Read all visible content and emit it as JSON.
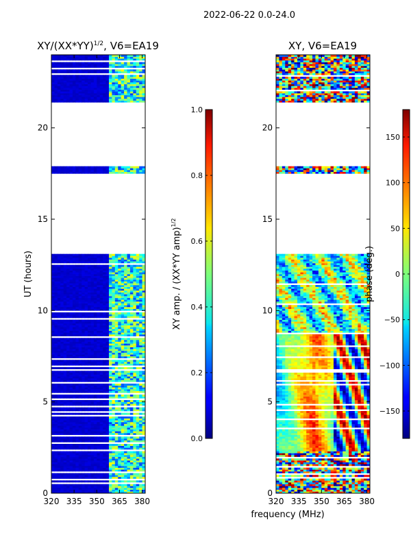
{
  "suptitle": "2022-06-22 0.0-24.0",
  "xlabel_shared": "frequency (MHz)",
  "chart_data": [
    {
      "type": "heatmap",
      "title_main": "XY/(XX*YY)",
      "title_sup": "1/2",
      "title_tail": ", V6=EA19",
      "ylabel": "UT (hours)",
      "xlim": [
        320,
        382
      ],
      "ylim": [
        0,
        24
      ],
      "xticks": [
        320,
        335,
        350,
        365,
        380
      ],
      "yticks": [
        0,
        5,
        10,
        15,
        20
      ],
      "colorbar": {
        "label_main": "XY amp. / (XX*YY amp)",
        "label_sup": "1/2",
        "range": [
          0.0,
          1.0
        ],
        "ticks": [
          "0.0",
          "0.2",
          "0.4",
          "0.6",
          "0.8",
          "1.0"
        ],
        "tick_values": [
          0.0,
          0.2,
          0.4,
          0.6,
          0.8,
          1.0
        ]
      },
      "data_gaps_hours": [
        [
          13.1,
          17.5
        ],
        [
          17.9,
          21.4
        ]
      ],
      "description_values": {
        "low_band_MHz": [
          320,
          358
        ],
        "low_band_value": 0.05,
        "high_band_MHz": [
          358,
          380
        ],
        "high_band_value_range": [
          0.2,
          0.6
        ]
      }
    },
    {
      "type": "heatmap",
      "title": "XY, V6=EA19",
      "xlim": [
        320,
        382
      ],
      "ylim": [
        0,
        24
      ],
      "xticks": [
        320,
        335,
        350,
        365,
        380
      ],
      "yticks": [
        0,
        5,
        10,
        15,
        20
      ],
      "colorbar": {
        "label": "phase (deg.)",
        "range": [
          -180,
          180
        ],
        "ticks": [
          "150",
          "100",
          "50",
          "0",
          "−50",
          "−100",
          "−150"
        ],
        "tick_values": [
          150,
          100,
          50,
          0,
          -50,
          -100,
          -150
        ]
      },
      "data_gaps_hours": [
        [
          13.1,
          17.5
        ],
        [
          17.9,
          21.4
        ]
      ]
    }
  ]
}
